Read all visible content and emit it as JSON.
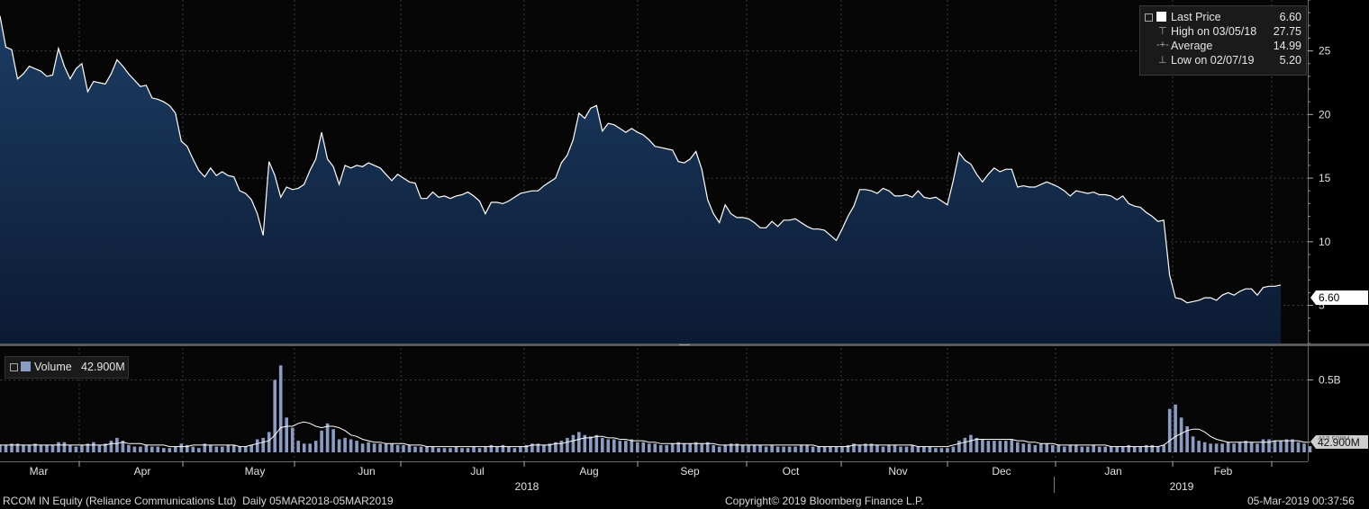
{
  "legend": {
    "last_price_label": "Last Price",
    "last_price_value": "6.60",
    "high_label": "High on 03/05/18",
    "high_value": "27.75",
    "average_label": "Average",
    "average_value": "14.99",
    "low_label": "Low on 02/07/19",
    "low_value": "5.20"
  },
  "volume_legend": {
    "label": "Volume",
    "value": "42.900M"
  },
  "price_tag": "6.60",
  "volume_tag_hidden": "412.500M",
  "volume_tag": "42.900M",
  "footer": {
    "left": "RCOM IN Equity (Reliance Communications Ltd)  Daily 05MAR2018-05MAR2019",
    "center": "Copyright© 2019 Bloomberg Finance L.P.",
    "right": "05-Mar-2019 00:37:56"
  },
  "year_labels": [
    "2018",
    "2019"
  ],
  "colors": {
    "price_line": "#ffffff",
    "area_top": "#1c3d63",
    "area_bottom": "#0c1a33",
    "volume_bar": "#8a9bc4",
    "grid": "#3c3c3c"
  },
  "chart_data": [
    {
      "type": "area",
      "series": [
        {
          "name": "Last Price",
          "values": [
            27.75,
            25.3,
            25.1,
            22.8,
            23.2,
            23.8,
            23.6,
            23.4,
            23.0,
            23.1,
            25.2,
            23.8,
            22.8,
            23.6,
            24.0,
            21.8,
            22.6,
            22.5,
            22.4,
            23.2,
            24.3,
            23.8,
            23.2,
            22.7,
            22.2,
            22.3,
            21.3,
            21.2,
            21.0,
            20.7,
            20.1,
            17.9,
            17.5,
            16.5,
            15.6,
            15.1,
            15.8,
            15.2,
            15.5,
            15.2,
            15.1,
            14.0,
            13.8,
            13.3,
            12.2,
            10.5,
            16.3,
            15.2,
            13.5,
            14.3,
            14.1,
            14.2,
            14.5,
            15.6,
            16.5,
            18.6,
            16.5,
            15.9,
            14.5,
            16.0,
            15.8,
            16.0,
            15.9,
            16.2,
            16.0,
            15.8,
            15.3,
            14.8,
            15.3,
            15.0,
            14.7,
            14.6,
            13.4,
            13.4,
            13.9,
            13.5,
            13.6,
            13.4,
            13.6,
            13.7,
            13.9,
            13.6,
            13.2,
            12.2,
            13.1,
            13.1,
            13.0,
            13.2,
            13.5,
            13.8,
            13.9,
            14.0,
            14.0,
            14.4,
            14.7,
            15.0,
            16.2,
            16.8,
            18.0,
            20.1,
            19.7,
            20.5,
            20.7,
            18.7,
            19.3,
            19.2,
            18.9,
            18.6,
            18.9,
            18.6,
            18.4,
            18.0,
            17.5,
            17.4,
            17.3,
            17.2,
            16.3,
            16.2,
            16.5,
            17.1,
            15.7,
            13.3,
            12.2,
            11.5,
            12.9,
            12.2,
            11.9,
            11.9,
            11.8,
            11.5,
            11.1,
            11.1,
            11.6,
            11.2,
            11.7,
            11.7,
            11.8,
            11.5,
            11.2,
            11.0,
            11.0,
            10.9,
            10.5,
            10.1,
            11.0,
            12.0,
            12.8,
            14.1,
            14.1,
            14.0,
            13.8,
            14.2,
            14.0,
            13.6,
            13.6,
            13.7,
            13.5,
            14.0,
            13.5,
            13.4,
            13.5,
            13.2,
            12.9,
            14.8,
            17.0,
            16.4,
            16.1,
            15.3,
            14.7,
            15.3,
            15.8,
            15.5,
            15.7,
            15.7,
            14.3,
            14.4,
            14.3,
            14.3,
            14.5,
            14.7,
            14.5,
            14.3,
            14.0,
            13.6,
            14.0,
            13.9,
            13.8,
            13.9,
            13.7,
            13.7,
            13.6,
            13.3,
            13.6,
            13.0,
            12.8,
            12.7,
            12.3,
            12.0,
            11.6,
            11.7,
            7.4,
            5.6,
            5.5,
            5.2,
            5.3,
            5.4,
            5.6,
            5.6,
            5.4,
            5.8,
            6.0,
            5.8,
            6.1,
            6.3,
            6.3,
            5.8,
            6.4,
            6.5,
            6.5,
            6.6
          ]
        }
      ],
      "x_labels": [
        "Mar",
        "Apr",
        "May",
        "Jun",
        "Jul",
        "Aug",
        "Sep",
        "Oct",
        "Nov",
        "Dec",
        "Jan",
        "Feb"
      ],
      "year_labels": [
        "2018",
        "2019"
      ],
      "y_ticks": [
        5,
        10,
        15,
        20,
        25
      ],
      "ylim": [
        2.0,
        29.0
      ],
      "grid": true,
      "legend_position": "top-right"
    },
    {
      "type": "bar",
      "series": [
        {
          "name": "Volume",
          "values": [
            0.05,
            0.05,
            0.06,
            0.06,
            0.05,
            0.05,
            0.06,
            0.05,
            0.05,
            0.05,
            0.07,
            0.07,
            0.05,
            0.04,
            0.05,
            0.06,
            0.07,
            0.05,
            0.06,
            0.08,
            0.1,
            0.08,
            0.05,
            0.04,
            0.04,
            0.05,
            0.04,
            0.04,
            0.03,
            0.03,
            0.04,
            0.06,
            0.05,
            0.04,
            0.03,
            0.06,
            0.05,
            0.04,
            0.04,
            0.05,
            0.05,
            0.04,
            0.04,
            0.05,
            0.09,
            0.1,
            0.14,
            0.5,
            0.6,
            0.24,
            0.17,
            0.08,
            0.06,
            0.06,
            0.08,
            0.15,
            0.2,
            0.16,
            0.09,
            0.1,
            0.09,
            0.08,
            0.06,
            0.07,
            0.06,
            0.06,
            0.06,
            0.06,
            0.05,
            0.05,
            0.05,
            0.04,
            0.04,
            0.04,
            0.04,
            0.03,
            0.03,
            0.03,
            0.04,
            0.03,
            0.03,
            0.04,
            0.03,
            0.04,
            0.05,
            0.04,
            0.05,
            0.04,
            0.03,
            0.04,
            0.05,
            0.06,
            0.06,
            0.05,
            0.06,
            0.07,
            0.08,
            0.1,
            0.12,
            0.14,
            0.12,
            0.11,
            0.12,
            0.1,
            0.09,
            0.09,
            0.08,
            0.08,
            0.09,
            0.07,
            0.07,
            0.06,
            0.06,
            0.05,
            0.05,
            0.06,
            0.07,
            0.06,
            0.06,
            0.07,
            0.06,
            0.07,
            0.05,
            0.04,
            0.05,
            0.06,
            0.06,
            0.05,
            0.05,
            0.05,
            0.05,
            0.04,
            0.05,
            0.04,
            0.04,
            0.04,
            0.04,
            0.05,
            0.05,
            0.04,
            0.04,
            0.04,
            0.04,
            0.04,
            0.04,
            0.05,
            0.06,
            0.05,
            0.06,
            0.06,
            0.05,
            0.04,
            0.05,
            0.05,
            0.04,
            0.04,
            0.05,
            0.04,
            0.04,
            0.04,
            0.03,
            0.03,
            0.03,
            0.04,
            0.08,
            0.1,
            0.12,
            0.1,
            0.09,
            0.08,
            0.08,
            0.08,
            0.08,
            0.09,
            0.07,
            0.06,
            0.06,
            0.05,
            0.06,
            0.06,
            0.05,
            0.05,
            0.04,
            0.05,
            0.05,
            0.04,
            0.04,
            0.05,
            0.04,
            0.04,
            0.04,
            0.04,
            0.04,
            0.05,
            0.04,
            0.04,
            0.05,
            0.05,
            0.04,
            0.05,
            0.3,
            0.33,
            0.24,
            0.18,
            0.11,
            0.08,
            0.07,
            0.06,
            0.06,
            0.06,
            0.07,
            0.06,
            0.07,
            0.08,
            0.07,
            0.06,
            0.09,
            0.09,
            0.08,
            0.08,
            0.09,
            0.09,
            0.07,
            0.06,
            0.0429
          ]
        },
        {
          "name": "Volume average",
          "values": [
            0.05,
            0.05,
            0.05,
            0.05,
            0.05,
            0.05,
            0.05,
            0.05,
            0.05,
            0.05,
            0.05,
            0.05,
            0.05,
            0.05,
            0.05,
            0.05,
            0.05,
            0.05,
            0.05,
            0.06,
            0.06,
            0.07,
            0.06,
            0.06,
            0.06,
            0.05,
            0.05,
            0.05,
            0.05,
            0.04,
            0.04,
            0.04,
            0.04,
            0.05,
            0.05,
            0.05,
            0.05,
            0.05,
            0.05,
            0.05,
            0.05,
            0.04,
            0.04,
            0.05,
            0.06,
            0.07,
            0.08,
            0.12,
            0.17,
            0.18,
            0.18,
            0.2,
            0.21,
            0.2,
            0.18,
            0.17,
            0.18,
            0.18,
            0.17,
            0.15,
            0.12,
            0.11,
            0.09,
            0.08,
            0.07,
            0.07,
            0.06,
            0.06,
            0.06,
            0.06,
            0.05,
            0.05,
            0.05,
            0.04,
            0.04,
            0.04,
            0.04,
            0.04,
            0.04,
            0.04,
            0.04,
            0.04,
            0.04,
            0.04,
            0.04,
            0.04,
            0.04,
            0.04,
            0.04,
            0.04,
            0.04,
            0.05,
            0.05,
            0.05,
            0.05,
            0.06,
            0.06,
            0.07,
            0.08,
            0.09,
            0.1,
            0.1,
            0.11,
            0.11,
            0.1,
            0.1,
            0.09,
            0.09,
            0.08,
            0.08,
            0.08,
            0.07,
            0.07,
            0.06,
            0.06,
            0.06,
            0.06,
            0.06,
            0.06,
            0.06,
            0.06,
            0.06,
            0.06,
            0.05,
            0.05,
            0.05,
            0.05,
            0.05,
            0.05,
            0.05,
            0.05,
            0.05,
            0.05,
            0.05,
            0.05,
            0.05,
            0.05,
            0.05,
            0.05,
            0.05,
            0.04,
            0.04,
            0.04,
            0.04,
            0.04,
            0.04,
            0.05,
            0.05,
            0.05,
            0.05,
            0.05,
            0.05,
            0.05,
            0.05,
            0.05,
            0.05,
            0.05,
            0.04,
            0.04,
            0.04,
            0.04,
            0.04,
            0.04,
            0.05,
            0.06,
            0.07,
            0.08,
            0.09,
            0.09,
            0.09,
            0.09,
            0.09,
            0.09,
            0.09,
            0.08,
            0.08,
            0.07,
            0.07,
            0.06,
            0.06,
            0.06,
            0.05,
            0.05,
            0.05,
            0.05,
            0.05,
            0.05,
            0.05,
            0.05,
            0.05,
            0.04,
            0.04,
            0.04,
            0.04,
            0.04,
            0.04,
            0.04,
            0.04,
            0.04,
            0.05,
            0.08,
            0.11,
            0.13,
            0.15,
            0.16,
            0.16,
            0.14,
            0.11,
            0.09,
            0.08,
            0.07,
            0.07,
            0.07,
            0.07,
            0.07,
            0.07,
            0.07,
            0.07,
            0.08,
            0.08,
            0.08,
            0.08,
            0.08,
            0.07,
            0.07
          ]
        }
      ],
      "y_ticks": [
        0.5
      ],
      "y_tick_labels": [
        "0.5B"
      ],
      "ylim": [
        0,
        0.72
      ],
      "grid": true,
      "legend_position": "top-left"
    }
  ]
}
